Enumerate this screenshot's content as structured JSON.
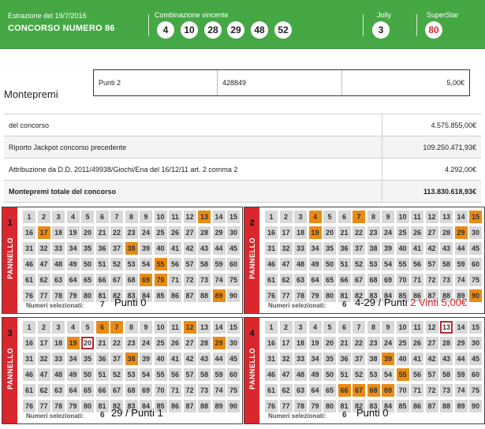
{
  "header": {
    "date_label": "Estrazione del 19/7/2016",
    "contest_title": "CONCORSO NUMERO 86",
    "winning_label": "Combinazione vincente",
    "winning_numbers": [
      "4",
      "10",
      "28",
      "29",
      "48",
      "52"
    ],
    "jolly_label": "Jolly",
    "jolly_number": "3",
    "superstar_label": "SuperStar",
    "superstar_number": "80",
    "superstar_color": "#d9262c"
  },
  "montepremi": {
    "title": "Montepremi",
    "prize_row": {
      "category": "Punti 2",
      "winners": "428849",
      "amount": "5,00€"
    },
    "rows": [
      {
        "label": "del concorso",
        "value": "4.575.855,00€"
      },
      {
        "label": "Riporto Jackpot concorso precedente",
        "value": "109.250.471,93€"
      },
      {
        "label": "Attribuzione da D.D. 2011/49938/Giochi/Ena del 16/12/11 art. 2 comma 2",
        "value": "4.292,00€"
      },
      {
        "label": "Montepremi totale del concorso",
        "value": "113.830.618,93€"
      }
    ]
  },
  "panels": [
    {
      "number": "1",
      "label": "PANNELLO",
      "selected_label": "Numeri selezionati:",
      "selected_count": "7",
      "selected": [
        13,
        17,
        38,
        55,
        69,
        70,
        89
      ],
      "hits": [],
      "result": "Punti 0",
      "result_extra": ""
    },
    {
      "number": "2",
      "label": "PANNELLO",
      "selected_label": "Numeri selezionati:",
      "selected_count": "6",
      "selected": [
        4,
        7,
        15,
        19,
        29,
        90
      ],
      "hits": [],
      "result": "4-29 / Punti",
      "result_extra": "2 Vinti 5,00€"
    },
    {
      "number": "3",
      "label": "PANNELLO",
      "selected_label": "Numeri selezionati:",
      "selected_count": "6",
      "selected": [
        6,
        7,
        12,
        19,
        29,
        38
      ],
      "hits": [
        20
      ],
      "result": "29 / Punti 1",
      "result_extra": ""
    },
    {
      "number": "4",
      "label": "PANNELLO",
      "selected_label": "Numeri selezionati:",
      "selected_count": "6",
      "selected": [
        39,
        55,
        66,
        67,
        68,
        69
      ],
      "hits": [
        13
      ],
      "result": "Punti 0",
      "result_extra": ""
    }
  ],
  "colors": {
    "header_green": "#45a845",
    "panel_red": "#d8272d",
    "selected_orange": "#e98b15",
    "cell_grey": "#d8d8d8"
  }
}
